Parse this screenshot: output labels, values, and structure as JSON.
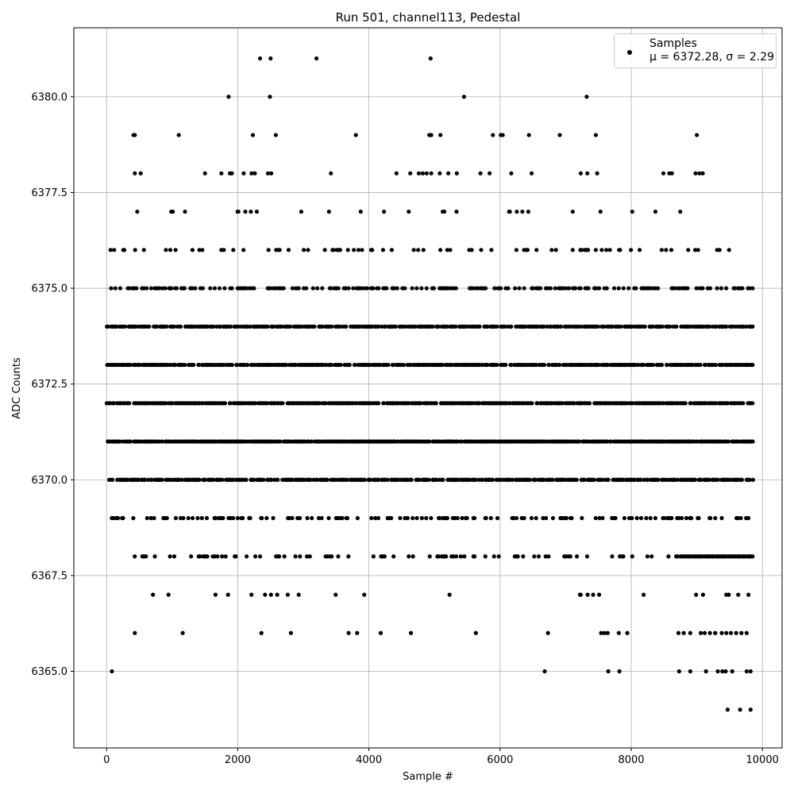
{
  "chart_data": {
    "type": "scatter",
    "title": "Run 501, channel113, Pedestal",
    "xlabel": "Sample #",
    "ylabel": "ADC Counts",
    "xlim": [
      -500,
      10300
    ],
    "ylim": [
      6363.0,
      6381.8
    ],
    "x_ticks": [
      0,
      2000,
      4000,
      6000,
      8000,
      10000
    ],
    "x_tick_labels": [
      "0",
      "2000",
      "4000",
      "6000",
      "8000",
      "10000"
    ],
    "y_ticks": [
      6365.0,
      6367.5,
      6370.0,
      6372.5,
      6375.0,
      6377.5,
      6380.0
    ],
    "y_tick_labels": [
      "6365.0",
      "6367.5",
      "6370.0",
      "6372.5",
      "6375.0",
      "6377.5",
      "6380.0"
    ],
    "grid": true,
    "legend_position": "top-right",
    "series": [
      {
        "name": "Samples",
        "stats_label": "μ = 6372.28, σ = 2.29",
        "color": "#000000",
        "points": [
          [
            2340,
            6381
          ],
          [
            2500,
            6381
          ],
          [
            3200,
            6381
          ],
          [
            4940,
            6381
          ],
          [
            1860,
            6380
          ],
          [
            2490,
            6380
          ],
          [
            5450,
            6380
          ],
          [
            7320,
            6380
          ],
          [
            410,
            6379
          ],
          [
            430,
            6379
          ],
          [
            1100,
            6379
          ],
          [
            2230,
            6379
          ],
          [
            2580,
            6379
          ],
          [
            3800,
            6379
          ],
          [
            4920,
            6379
          ],
          [
            4950,
            6379
          ],
          [
            5090,
            6379
          ],
          [
            5890,
            6379
          ],
          [
            6010,
            6379
          ],
          [
            6040,
            6379
          ],
          [
            6440,
            6379
          ],
          [
            6910,
            6379
          ],
          [
            7460,
            6379
          ],
          [
            9000,
            6379
          ],
          [
            430,
            6378
          ],
          [
            520,
            6378
          ],
          [
            1500,
            6378
          ],
          [
            1750,
            6378
          ],
          [
            1880,
            6378
          ],
          [
            1910,
            6378
          ],
          [
            2090,
            6378
          ],
          [
            2210,
            6378
          ],
          [
            2260,
            6378
          ],
          [
            2460,
            6378
          ],
          [
            2510,
            6378
          ],
          [
            3420,
            6378
          ],
          [
            4420,
            6378
          ],
          [
            4630,
            6378
          ],
          [
            4760,
            6378
          ],
          [
            4820,
            6378
          ],
          [
            4880,
            6378
          ],
          [
            4950,
            6378
          ],
          [
            5080,
            6378
          ],
          [
            5210,
            6378
          ],
          [
            5340,
            6378
          ],
          [
            5700,
            6378
          ],
          [
            5840,
            6378
          ],
          [
            6170,
            6378
          ],
          [
            6480,
            6378
          ],
          [
            7230,
            6378
          ],
          [
            7330,
            6378
          ],
          [
            7480,
            6378
          ],
          [
            8490,
            6378
          ],
          [
            8580,
            6378
          ],
          [
            8620,
            6378
          ],
          [
            8980,
            6378
          ],
          [
            9040,
            6378
          ],
          [
            9090,
            6378
          ],
          [
            430,
            6366
          ],
          [
            1160,
            6366
          ],
          [
            2360,
            6366
          ],
          [
            2810,
            6366
          ],
          [
            3690,
            6366
          ],
          [
            3820,
            6366
          ],
          [
            4180,
            6366
          ],
          [
            4640,
            6366
          ],
          [
            5630,
            6366
          ],
          [
            6730,
            6366
          ],
          [
            7540,
            6366
          ],
          [
            7590,
            6366
          ],
          [
            7640,
            6366
          ],
          [
            7810,
            6366
          ],
          [
            7940,
            6366
          ],
          [
            8720,
            6366
          ],
          [
            8800,
            6366
          ],
          [
            8900,
            6366
          ],
          [
            9060,
            6366
          ],
          [
            9120,
            6366
          ],
          [
            9200,
            6366
          ],
          [
            9280,
            6366
          ],
          [
            9380,
            6366
          ],
          [
            9450,
            6366
          ],
          [
            9520,
            6366
          ],
          [
            9600,
            6366
          ],
          [
            9680,
            6366
          ],
          [
            9760,
            6366
          ],
          [
            80,
            6365
          ],
          [
            6680,
            6365
          ],
          [
            7650,
            6365
          ],
          [
            7820,
            6365
          ],
          [
            8730,
            6365
          ],
          [
            8900,
            6365
          ],
          [
            9140,
            6365
          ],
          [
            9320,
            6365
          ],
          [
            9390,
            6365
          ],
          [
            9440,
            6365
          ],
          [
            9540,
            6365
          ],
          [
            9760,
            6365
          ],
          [
            9820,
            6365
          ],
          [
            9470,
            6364
          ],
          [
            9660,
            6364
          ],
          [
            9820,
            6364
          ]
        ]
      }
    ]
  }
}
